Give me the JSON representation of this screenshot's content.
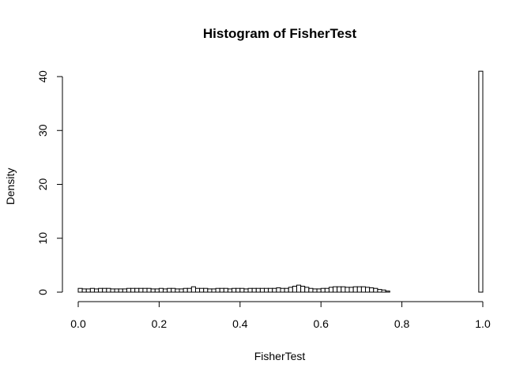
{
  "chart_data": {
    "type": "bar",
    "title": "Histogram of FisherTest",
    "xlabel": "FisherTest",
    "ylabel": "Density",
    "xlim": [
      0,
      1
    ],
    "ylim": [
      0,
      41
    ],
    "x_ticks": [
      "0.0",
      "0.2",
      "0.4",
      "0.6",
      "0.8",
      "1.0"
    ],
    "y_ticks": [
      "0",
      "10",
      "20",
      "30",
      "40"
    ],
    "bin_width": 0.01,
    "bin_starts": [
      0.0,
      0.01,
      0.02,
      0.03,
      0.04,
      0.05,
      0.06,
      0.07,
      0.08,
      0.09,
      0.1,
      0.11,
      0.12,
      0.13,
      0.14,
      0.15,
      0.16,
      0.17,
      0.18,
      0.19,
      0.2,
      0.21,
      0.22,
      0.23,
      0.24,
      0.25,
      0.26,
      0.27,
      0.28,
      0.29,
      0.3,
      0.31,
      0.32,
      0.33,
      0.34,
      0.35,
      0.36,
      0.37,
      0.38,
      0.39,
      0.4,
      0.41,
      0.42,
      0.43,
      0.44,
      0.45,
      0.46,
      0.47,
      0.48,
      0.49,
      0.5,
      0.51,
      0.52,
      0.53,
      0.54,
      0.55,
      0.56,
      0.57,
      0.58,
      0.59,
      0.6,
      0.61,
      0.62,
      0.63,
      0.64,
      0.65,
      0.66,
      0.67,
      0.68,
      0.69,
      0.7,
      0.71,
      0.72,
      0.73,
      0.74,
      0.75,
      0.76,
      0.77,
      0.78,
      0.79,
      0.8,
      0.81,
      0.82,
      0.83,
      0.84,
      0.85,
      0.86,
      0.87,
      0.88,
      0.89,
      0.9,
      0.91,
      0.92,
      0.93,
      0.94,
      0.95,
      0.96,
      0.97,
      0.98,
      0.99
    ],
    "values": [
      0.7,
      0.6,
      0.6,
      0.7,
      0.6,
      0.7,
      0.7,
      0.7,
      0.6,
      0.6,
      0.6,
      0.6,
      0.7,
      0.7,
      0.7,
      0.7,
      0.7,
      0.7,
      0.6,
      0.6,
      0.7,
      0.6,
      0.7,
      0.7,
      0.6,
      0.6,
      0.7,
      0.7,
      1.0,
      0.7,
      0.7,
      0.7,
      0.6,
      0.6,
      0.7,
      0.7,
      0.7,
      0.6,
      0.7,
      0.7,
      0.7,
      0.6,
      0.7,
      0.7,
      0.7,
      0.7,
      0.7,
      0.7,
      0.7,
      0.8,
      0.7,
      0.7,
      0.9,
      1.1,
      1.3,
      1.1,
      0.9,
      0.7,
      0.6,
      0.6,
      0.7,
      0.7,
      0.9,
      1.0,
      1.0,
      1.0,
      0.9,
      0.9,
      1.0,
      1.0,
      1.0,
      0.9,
      0.8,
      0.7,
      0.5,
      0.4,
      0.2,
      0.0,
      0.0,
      0.0,
      0.0,
      0.0,
      0.0,
      0.0,
      0.0,
      0.0,
      0.0,
      0.0,
      0.0,
      0.0,
      0.0,
      0.0,
      0.0,
      0.0,
      0.0,
      0.0,
      0.0,
      0.0,
      0.0,
      41.0
    ]
  }
}
